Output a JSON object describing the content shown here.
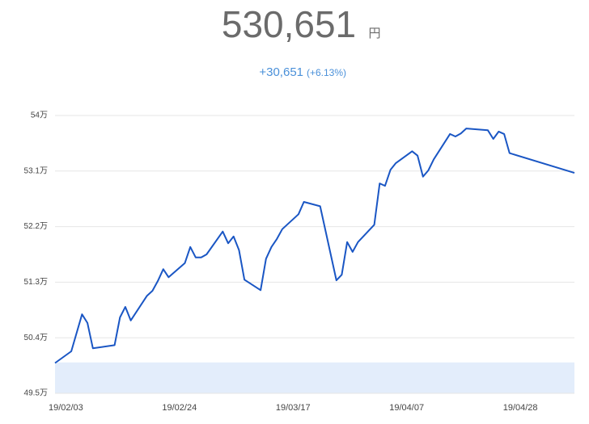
{
  "header": {
    "value": "530,651",
    "unit": "円",
    "change": "+30,651",
    "change_pct": "(+6.13%)"
  },
  "chart_data": {
    "type": "line",
    "x": [
      "19/02/01",
      "19/02/04",
      "19/02/06",
      "19/02/07",
      "19/02/08",
      "19/02/12",
      "19/02/13",
      "19/02/14",
      "19/02/15",
      "19/02/18",
      "19/02/19",
      "19/02/20",
      "19/02/21",
      "19/02/22",
      "19/02/25",
      "19/02/26",
      "19/02/27",
      "19/02/28",
      "19/03/01",
      "19/03/04",
      "19/03/05",
      "19/03/06",
      "19/03/07",
      "19/03/08",
      "19/03/11",
      "19/03/12",
      "19/03/13",
      "19/03/14",
      "19/03/15",
      "19/03/18",
      "19/03/19",
      "19/03/22",
      "19/03/25",
      "19/03/26",
      "19/03/27",
      "19/03/28",
      "19/03/29",
      "19/04/01",
      "19/04/02",
      "19/04/03",
      "19/04/04",
      "19/04/05",
      "19/04/08",
      "19/04/09",
      "19/04/10",
      "19/04/11",
      "19/04/12",
      "19/04/15",
      "19/04/16",
      "19/04/17",
      "19/04/18",
      "19/04/22",
      "19/04/23",
      "19/04/24",
      "19/04/25",
      "19/04/26",
      "19/05/08"
    ],
    "series": [
      {
        "color": "#1a56c4",
        "values": [
          49.99,
          50.18,
          50.78,
          50.64,
          50.23,
          50.28,
          50.73,
          50.9,
          50.68,
          51.08,
          51.16,
          51.32,
          51.51,
          51.38,
          51.61,
          51.87,
          51.7,
          51.7,
          51.75,
          52.12,
          51.93,
          52.04,
          51.82,
          51.34,
          51.17,
          51.68,
          51.87,
          52.0,
          52.16,
          52.4,
          52.6,
          52.53,
          51.33,
          51.42,
          51.95,
          51.79,
          51.95,
          52.23,
          52.9,
          52.86,
          53.12,
          53.23,
          53.42,
          53.35,
          53.01,
          53.11,
          53.29,
          53.7,
          53.66,
          53.71,
          53.79,
          53.76,
          53.62,
          53.74,
          53.7,
          53.39,
          53.07
        ]
      }
    ],
    "baseline": 50,
    "baseline_color": "#e3edfb",
    "xlim": [
      "19/02/01",
      "19/05/08"
    ],
    "xticks": [
      "19/02/03",
      "19/02/24",
      "19/03/17",
      "19/04/07",
      "19/04/28"
    ],
    "ylim": [
      49.5,
      54
    ],
    "yticks": [
      {
        "value": 49.5,
        "label": "49.5万"
      },
      {
        "value": 50.4,
        "label": "50.4万"
      },
      {
        "value": 51.3,
        "label": "51.3万"
      },
      {
        "value": 52.2,
        "label": "52.2万"
      },
      {
        "value": 53.1,
        "label": "53.1万"
      },
      {
        "value": 54,
        "label": "54万"
      }
    ],
    "grid": true
  }
}
